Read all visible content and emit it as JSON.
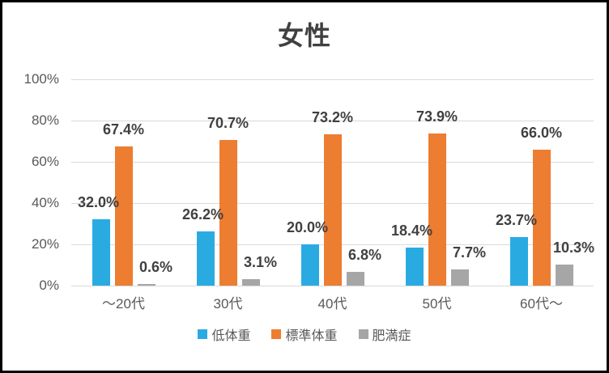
{
  "title": "女性",
  "chart_data": {
    "type": "bar",
    "title": "女性",
    "categories": [
      "～20代",
      "30代",
      "40代",
      "50代",
      "60代～"
    ],
    "series": [
      {
        "name": "低体重",
        "color": "#29ABE2",
        "values": [
          32.0,
          26.2,
          20.0,
          18.4,
          23.7
        ],
        "labels": [
          "32.0%",
          "26.2%",
          "20.0%",
          "18.4%",
          "23.7%"
        ]
      },
      {
        "name": "標準体重",
        "color": "#ED7D31",
        "values": [
          67.4,
          70.7,
          73.2,
          73.9,
          66.0
        ],
        "labels": [
          "67.4%",
          "70.7%",
          "73.2%",
          "73.9%",
          "66.0%"
        ]
      },
      {
        "name": "肥満症",
        "color": "#A6A6A6",
        "values": [
          0.6,
          3.1,
          6.8,
          7.7,
          10.3
        ],
        "labels": [
          "0.6%",
          "3.1%",
          "6.8%",
          "7.7%",
          "10.3%"
        ]
      }
    ],
    "xlabel": "",
    "ylabel": "",
    "ylim": [
      0,
      100
    ],
    "ytick_labels": [
      "0%",
      "20%",
      "40%",
      "60%",
      "80%",
      "100%"
    ],
    "ytick_step": 20,
    "grid": true,
    "legend_position": "bottom"
  },
  "colors": {
    "background": "#FFFFFF",
    "frame_border": "#000000",
    "gridline": "#D9D9D9",
    "axis_text": "#595959",
    "data_label_text": "#404040",
    "title_text": "#404040"
  }
}
